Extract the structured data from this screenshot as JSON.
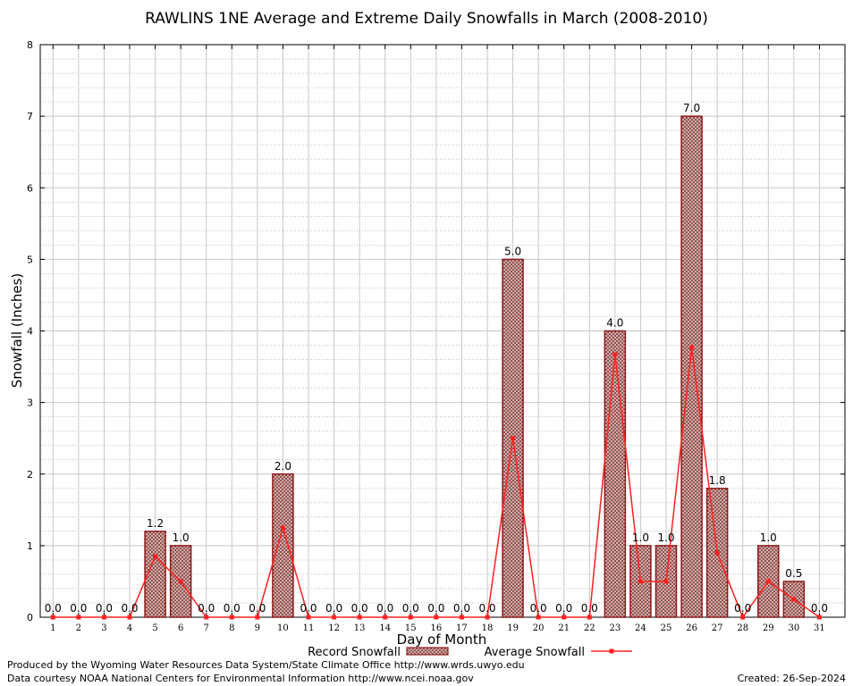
{
  "chart_data": {
    "type": "bar",
    "title": "RAWLINS 1NE Average and Extreme Daily Snowfalls in March (2008-2010)",
    "xlabel": "Day of Month",
    "ylabel": "Snowfall (Inches)",
    "ylim": [
      0,
      8
    ],
    "yticks": [
      "0",
      "1",
      "2",
      "3",
      "4",
      "5",
      "6",
      "7",
      "8"
    ],
    "grid": true,
    "categories": [
      "1",
      "2",
      "3",
      "4",
      "5",
      "6",
      "7",
      "8",
      "9",
      "10",
      "11",
      "12",
      "13",
      "14",
      "15",
      "16",
      "17",
      "18",
      "19",
      "20",
      "21",
      "22",
      "23",
      "24",
      "25",
      "26",
      "27",
      "28",
      "29",
      "30",
      "31"
    ],
    "series": [
      {
        "name": "Record Snowfall",
        "kind": "bar",
        "color": "#8b1a1a",
        "values": [
          0,
          0,
          0,
          0,
          1.2,
          1.0,
          0,
          0,
          0,
          2.0,
          0,
          0,
          0,
          0,
          0,
          0,
          0,
          0,
          5.0,
          0,
          0,
          0,
          4.0,
          1.0,
          1.0,
          7.0,
          1.8,
          0,
          1.0,
          0.5,
          0
        ],
        "labels": [
          "0.0",
          "0.0",
          "0.0",
          "0.0",
          "1.2",
          "1.0",
          "0.0",
          "0.0",
          "0.0",
          "2.0",
          "0.0",
          "0.0",
          "0.0",
          "0.0",
          "0.0",
          "0.0",
          "0.0",
          "0.0",
          "5.0",
          "0.0",
          "0.0",
          "0.0",
          "4.0",
          "1.0",
          "1.0",
          "7.0",
          "1.8",
          "0.0",
          "1.0",
          "0.5",
          "0.0"
        ]
      },
      {
        "name": "Average Snowfall",
        "kind": "line",
        "color": "#ff2020",
        "values": [
          0,
          0,
          0,
          0,
          0.85,
          0.5,
          0,
          0,
          0,
          1.25,
          0,
          0,
          0,
          0,
          0,
          0,
          0,
          0,
          2.5,
          0,
          0,
          0,
          3.67,
          0.5,
          0.5,
          3.77,
          0.9,
          0,
          0.5,
          0.25,
          0
        ]
      }
    ],
    "legend_position": "bottom"
  },
  "footer": {
    "produced_by": "Produced by the Wyoming Water Resources Data System/State Climate Office http://www.wrds.uwyo.edu",
    "courtesy": "Data courtesy NOAA National Centers for Environmental Information http://www.ncei.noaa.gov",
    "created": "Created: 26-Sep-2024"
  }
}
